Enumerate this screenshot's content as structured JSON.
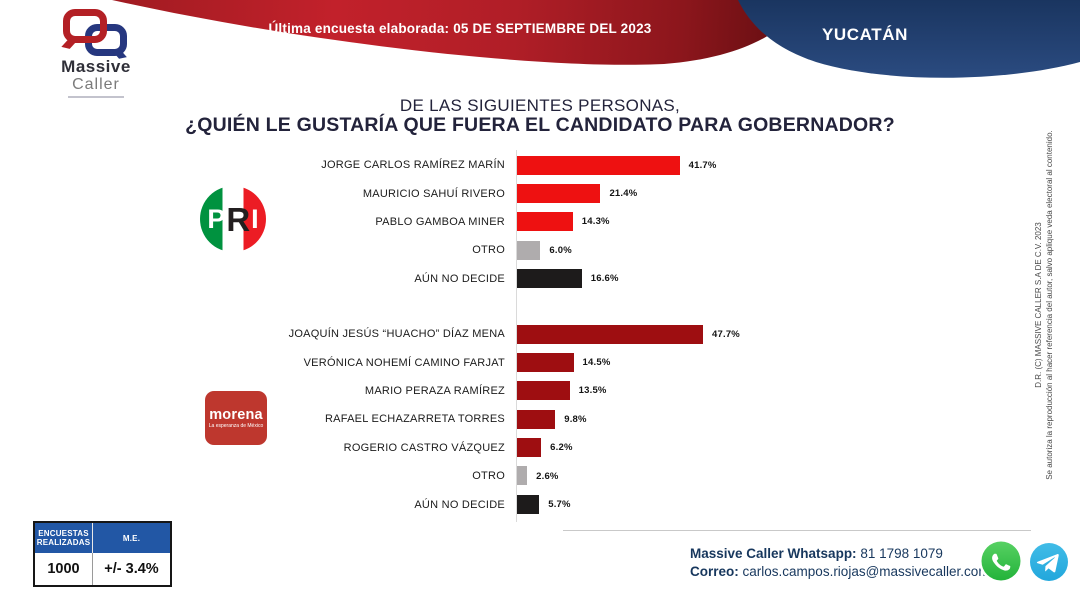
{
  "header": {
    "logo": {
      "name_top": "Massive",
      "name_bottom": "Caller"
    },
    "banner_label": "Última encuesta elaborada:",
    "banner_date": "05 DE SEPTIEMBRE DEL 2023",
    "region": "YUCATÁN"
  },
  "title": {
    "line1": "DE LAS SIGUIENTES PERSONAS,",
    "line2": "¿QUIÉN LE GUSTARÍA QUE FUERA EL CANDIDATO PARA GOBERNADOR?"
  },
  "chart_data": {
    "type": "bar",
    "orientation": "horizontal",
    "unit": "%",
    "xlim": [
      0,
      50
    ],
    "title": "DE LAS SIGUIENTES PERSONAS, ¿QUIÉN LE GUSTARÍA QUE FUERA EL CANDIDATO PARA GOBERNADOR?",
    "groups": [
      {
        "party": "PRI",
        "categories": [
          "JORGE CARLOS RAMÍREZ MARÍN",
          "MAURICIO SAHUÍ RIVERO",
          "PABLO GAMBOA MINER",
          "OTRO",
          "AÚN NO DECIDE"
        ],
        "values": [
          41.7,
          21.4,
          14.3,
          6.0,
          16.6
        ],
        "labels": [
          "41.7%",
          "21.4%",
          "14.3%",
          "6.0%",
          "16.6%"
        ],
        "colors": [
          "pri_red",
          "pri_red",
          "pri_red",
          "gray",
          "black"
        ]
      },
      {
        "party": "MORENA",
        "categories": [
          "JOAQUÍN JESÚS “HUACHO” DÍAZ MENA",
          "VERÓNICA NOHEMÍ CAMINO FARJAT",
          "MARIO PERAZA RAMÍREZ",
          "RAFAEL ECHAZARRETA TORRES",
          "ROGERIO CASTRO VÁZQUEZ",
          "OTRO",
          "AÚN NO DECIDE"
        ],
        "values": [
          47.7,
          14.5,
          13.5,
          9.8,
          6.2,
          2.6,
          5.7
        ],
        "labels": [
          "47.7%",
          "14.5%",
          "13.5%",
          "9.8%",
          "6.2%",
          "2.6%",
          "5.7%"
        ],
        "colors": [
          "morena_red",
          "morena_red",
          "morena_red",
          "morena_red",
          "morena_red",
          "gray",
          "black"
        ]
      }
    ]
  },
  "party_logos": {
    "pri": "PRI",
    "morena": "morena",
    "morena_tagline": "La esperanza de México"
  },
  "stats_table": {
    "header1": "ENCUESTAS REALIZADAS",
    "header2": "M.E.",
    "value1": "1000",
    "value2": "+/- 3.4%"
  },
  "contact": {
    "whatsapp_label": "Massive Caller Whatsapp:",
    "whatsapp_number": "81 1798 1079",
    "email_label": "Correo:",
    "email": "carlos.campos.riojas@massivecaller.com"
  },
  "copyright": {
    "line1": "D.R. (C) MASSIVE CALLER S.A DE C.V. 2023",
    "line2": "Se autoriza la reproducción al hacer referencia del autor, salvo aplique veda electoral al contenido."
  },
  "colors": {
    "pri_red": "#EE1111",
    "morena_red": "#9E0E11",
    "gray": "#AFACAD",
    "black": "#1D1B1B",
    "accent_navy": "#1F3864",
    "banner_red": "#B81D26",
    "table_header_blue": "#2257A5",
    "contact_navy": "#17375D",
    "whatsapp_green": "#3FBF4F",
    "telegram_blue": "#35A9DD"
  }
}
